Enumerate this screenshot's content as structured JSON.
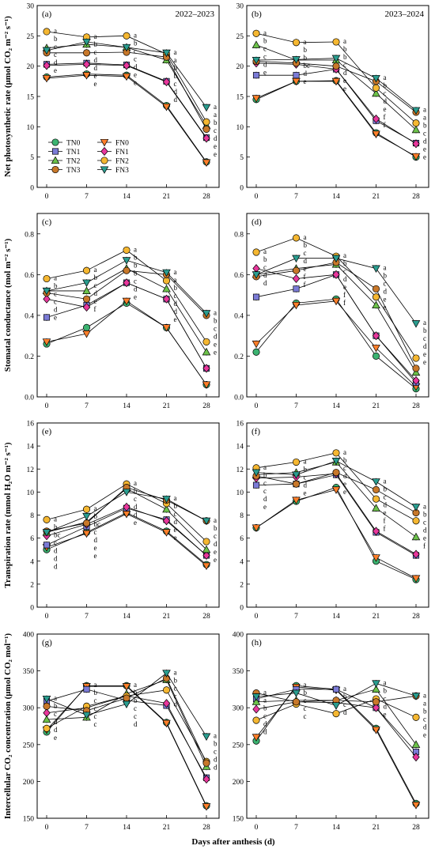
{
  "figure": {
    "xlabel": "Days after anthesis (d)",
    "row_labels": [
      "Net photosynthetic rate (μmol CO₂ m⁻² s⁻¹)",
      "Stomatal conductance (mol m⁻² s⁻¹)",
      "Transpiration rate (mmol H₂O m⁻² s⁻¹)",
      "Intercellular CO₂ concentration (μmol CO₂ mol⁻¹)"
    ]
  },
  "legend": [
    {
      "name": "TN0",
      "color": "#3cb371",
      "marker": "circle"
    },
    {
      "name": "FN0",
      "color": "#ff7f2a",
      "marker": "triangle-down"
    },
    {
      "name": "TN1",
      "color": "#7b7bd6",
      "marker": "square"
    },
    {
      "name": "FN1",
      "color": "#e8379c",
      "marker": "diamond"
    },
    {
      "name": "TN2",
      "color": "#6cc24a",
      "marker": "triangle-up"
    },
    {
      "name": "FN2",
      "color": "#f5b731",
      "marker": "circle"
    },
    {
      "name": "TN3",
      "color": "#c8782a",
      "marker": "circle"
    },
    {
      "name": "FN3",
      "color": "#2a9d8f",
      "marker": "triangle-down"
    }
  ],
  "chart_data": [
    {
      "id": "a",
      "type": "line",
      "panel_label": "(a)",
      "season": "2022–2023",
      "x": [
        0,
        7,
        14,
        21,
        28
      ],
      "ylim": [
        0,
        30
      ],
      "yticks": [
        0,
        5,
        10,
        15,
        20,
        25,
        30
      ],
      "series": [
        {
          "name": "TN0",
          "values": [
            18.2,
            18.7,
            18.5,
            13.5,
            4.2
          ]
        },
        {
          "name": "FN0",
          "values": [
            18.0,
            18.5,
            18.3,
            13.3,
            4.1
          ]
        },
        {
          "name": "TN1",
          "values": [
            20.3,
            20.5,
            20.2,
            17.5,
            8.2
          ]
        },
        {
          "name": "FN1",
          "values": [
            20.1,
            20.3,
            20.1,
            17.4,
            8.1
          ]
        },
        {
          "name": "TN2",
          "values": [
            23.0,
            23.6,
            23.1,
            21.0,
            10.2
          ]
        },
        {
          "name": "FN2",
          "values": [
            25.7,
            24.8,
            25.0,
            22.0,
            10.8
          ]
        },
        {
          "name": "TN3",
          "values": [
            22.2,
            22.2,
            22.3,
            21.5,
            9.6
          ]
        },
        {
          "name": "FN3",
          "values": [
            22.6,
            24.0,
            23.1,
            22.2,
            13.2
          ]
        }
      ],
      "letters": [
        [
          "a",
          "b",
          "c",
          "c",
          "d",
          "e"
        ],
        [
          "a",
          "b",
          "c",
          "d",
          "d",
          "e",
          "e"
        ],
        [
          "a",
          "b",
          "c",
          "c",
          "d",
          "e",
          "e"
        ],
        [
          "a",
          "a",
          "b",
          "b",
          "c",
          "d",
          "d"
        ],
        [
          "a",
          "a",
          "b",
          "c",
          "d",
          "e",
          "e"
        ]
      ]
    },
    {
      "id": "b",
      "type": "line",
      "panel_label": "(b)",
      "season": "2023–2024",
      "x": [
        0,
        7,
        14,
        21,
        28
      ],
      "ylim": [
        0,
        30
      ],
      "yticks": [
        0,
        5,
        10,
        15,
        20,
        25,
        30
      ],
      "series": [
        {
          "name": "TN0",
          "values": [
            14.5,
            17.5,
            17.6,
            9.0,
            5.0
          ]
        },
        {
          "name": "FN0",
          "values": [
            14.7,
            17.5,
            17.5,
            8.8,
            5.1
          ]
        },
        {
          "name": "TN1",
          "values": [
            18.5,
            18.5,
            19.5,
            11.0,
            7.3
          ]
        },
        {
          "name": "FN1",
          "values": [
            20.5,
            20.3,
            19.5,
            11.3,
            7.2
          ]
        },
        {
          "name": "TN2",
          "values": [
            23.5,
            21.0,
            21.0,
            15.5,
            9.5
          ]
        },
        {
          "name": "FN2",
          "values": [
            25.4,
            23.9,
            24.0,
            16.4,
            10.6
          ]
        },
        {
          "name": "TN3",
          "values": [
            20.8,
            20.5,
            20.0,
            17.5,
            12.4
          ]
        },
        {
          "name": "FN3",
          "values": [
            21.0,
            21.1,
            21.3,
            18.0,
            12.7
          ]
        }
      ],
      "letters": [
        [
          "a",
          "b",
          "c",
          "c",
          "d",
          "e"
        ],
        [
          "a",
          "b",
          "b",
          "bc",
          "d",
          "e"
        ],
        [
          "a",
          "b",
          "b",
          "c",
          "d",
          "e",
          "e"
        ],
        [
          "a",
          "b",
          "c",
          "d",
          "e",
          "f",
          "f"
        ],
        [
          "a",
          "a",
          "b",
          "c",
          "d",
          "e",
          "e"
        ]
      ]
    },
    {
      "id": "c",
      "type": "line",
      "panel_label": "(c)",
      "season": "",
      "x": [
        0,
        7,
        14,
        21,
        28
      ],
      "ylim": [
        0,
        0.9
      ],
      "yticks": [
        0.0,
        0.2,
        0.4,
        0.6,
        0.8
      ],
      "series": [
        {
          "name": "TN0",
          "values": [
            0.26,
            0.34,
            0.46,
            0.34,
            0.06
          ]
        },
        {
          "name": "FN0",
          "values": [
            0.27,
            0.31,
            0.47,
            0.34,
            0.06
          ]
        },
        {
          "name": "TN1",
          "values": [
            0.39,
            0.45,
            0.56,
            0.48,
            0.14
          ]
        },
        {
          "name": "FN1",
          "values": [
            0.48,
            0.44,
            0.56,
            0.48,
            0.14
          ]
        },
        {
          "name": "TN2",
          "values": [
            0.52,
            0.52,
            0.63,
            0.53,
            0.22
          ]
        },
        {
          "name": "FN2",
          "values": [
            0.58,
            0.62,
            0.72,
            0.57,
            0.27
          ]
        },
        {
          "name": "TN3",
          "values": [
            0.51,
            0.48,
            0.62,
            0.6,
            0.4
          ]
        },
        {
          "name": "FN3",
          "values": [
            0.52,
            0.56,
            0.67,
            0.61,
            0.41
          ]
        }
      ],
      "letters": [
        [
          "a",
          "b",
          "c",
          "c",
          "d",
          "e"
        ],
        [
          "a",
          "b",
          "c",
          "d",
          "e",
          "f"
        ],
        [
          "a",
          "b",
          "b",
          "b",
          "c",
          "d",
          "e"
        ],
        [
          "a",
          "a",
          "b",
          "c",
          "d",
          "d",
          "e"
        ],
        [
          "a",
          "b",
          "c",
          "d",
          "e",
          "e"
        ]
      ]
    },
    {
      "id": "d",
      "type": "line",
      "panel_label": "(d)",
      "season": "",
      "x": [
        0,
        7,
        14,
        21,
        28
      ],
      "ylim": [
        0,
        0.9
      ],
      "yticks": [
        0.0,
        0.2,
        0.4,
        0.6,
        0.8
      ],
      "series": [
        {
          "name": "TN0",
          "values": [
            0.22,
            0.46,
            0.48,
            0.2,
            0.04
          ]
        },
        {
          "name": "FN0",
          "values": [
            0.26,
            0.45,
            0.47,
            0.24,
            0.05
          ]
        },
        {
          "name": "TN1",
          "values": [
            0.49,
            0.53,
            0.6,
            0.3,
            0.07
          ]
        },
        {
          "name": "FN1",
          "values": [
            0.63,
            0.58,
            0.6,
            0.3,
            0.08
          ]
        },
        {
          "name": "TN2",
          "values": [
            0.6,
            0.63,
            0.65,
            0.45,
            0.12
          ]
        },
        {
          "name": "FN2",
          "values": [
            0.71,
            0.78,
            0.69,
            0.49,
            0.19
          ]
        },
        {
          "name": "TN3",
          "values": [
            0.59,
            0.62,
            0.66,
            0.53,
            0.14
          ]
        },
        {
          "name": "FN3",
          "values": [
            0.6,
            0.68,
            0.68,
            0.63,
            0.36
          ]
        }
      ],
      "letters": [
        [
          "a",
          "b",
          "c",
          "d",
          "d"
        ],
        [
          "a",
          "b",
          "c",
          "d",
          "e",
          "f",
          "f"
        ],
        [
          "a",
          "b",
          "c",
          "d",
          "e",
          "f",
          "f"
        ],
        [
          "a",
          "b",
          "c",
          "d",
          "e",
          "e"
        ],
        [
          "a",
          "b",
          "c",
          "d",
          "e",
          "e"
        ]
      ]
    },
    {
      "id": "e",
      "type": "line",
      "panel_label": "(e)",
      "season": "",
      "x": [
        0,
        7,
        14,
        21,
        28
      ],
      "ylim": [
        0,
        16
      ],
      "yticks": [
        0,
        2,
        4,
        6,
        8,
        10,
        12,
        14,
        16
      ],
      "series": [
        {
          "name": "TN0",
          "values": [
            5.0,
            6.5,
            8.2,
            6.6,
            3.7
          ]
        },
        {
          "name": "FN0",
          "values": [
            5.2,
            6.4,
            8.1,
            6.5,
            3.6
          ]
        },
        {
          "name": "TN1",
          "values": [
            5.4,
            7.0,
            8.6,
            7.6,
            4.5
          ]
        },
        {
          "name": "FN1",
          "values": [
            6.2,
            7.2,
            8.7,
            7.5,
            4.5
          ]
        },
        {
          "name": "TN2",
          "values": [
            6.5,
            7.4,
            10.3,
            8.5,
            5.0
          ]
        },
        {
          "name": "FN2",
          "values": [
            7.6,
            8.5,
            10.7,
            9.0,
            5.7
          ]
        },
        {
          "name": "TN3",
          "values": [
            6.6,
            7.3,
            10.4,
            9.3,
            7.5
          ]
        },
        {
          "name": "FN3",
          "values": [
            6.5,
            7.9,
            10.0,
            9.4,
            7.5
          ]
        }
      ],
      "letters": [
        [
          "a",
          "b",
          "bc",
          "c",
          "d",
          "d",
          "d"
        ],
        [
          "a",
          "b",
          "bc",
          "c",
          "d",
          "e",
          "e"
        ],
        [
          "a",
          "b",
          "c",
          "d",
          "d",
          "e"
        ],
        [
          "a",
          "b",
          "c",
          "d",
          "e",
          "e"
        ],
        [
          "a",
          "b",
          "c",
          "d",
          "e",
          "e"
        ]
      ]
    },
    {
      "id": "f",
      "type": "line",
      "panel_label": "(f)",
      "season": "",
      "x": [
        0,
        7,
        14,
        21,
        28
      ],
      "ylim": [
        0,
        16
      ],
      "yticks": [
        0,
        2,
        4,
        6,
        8,
        10,
        12,
        14,
        16
      ],
      "series": [
        {
          "name": "TN0",
          "values": [
            6.9,
            9.2,
            10.4,
            4.0,
            2.4
          ]
        },
        {
          "name": "FN0",
          "values": [
            6.9,
            9.3,
            10.2,
            4.3,
            2.5
          ]
        },
        {
          "name": "TN1",
          "values": [
            10.6,
            10.7,
            11.5,
            6.5,
            4.5
          ]
        },
        {
          "name": "FN1",
          "values": [
            11.2,
            11.3,
            11.6,
            6.6,
            4.6
          ]
        },
        {
          "name": "TN2",
          "values": [
            11.5,
            11.7,
            12.6,
            8.6,
            6.1
          ]
        },
        {
          "name": "FN2",
          "values": [
            12.1,
            12.6,
            13.4,
            9.4,
            7.5
          ]
        },
        {
          "name": "TN3",
          "values": [
            11.4,
            10.7,
            11.7,
            10.2,
            8.2
          ]
        },
        {
          "name": "FN3",
          "values": [
            11.7,
            11.5,
            12.7,
            10.9,
            8.7
          ]
        }
      ],
      "letters": [
        [
          "a",
          "b",
          "c",
          "c",
          "d",
          "e"
        ],
        [
          "a",
          "b",
          "c",
          "d",
          "e"
        ],
        [
          "a",
          "b",
          "c",
          "d",
          "e",
          "e"
        ],
        [
          "a",
          "b",
          "c",
          "d",
          "e",
          "f",
          "f"
        ],
        [
          "a",
          "b",
          "c",
          "d",
          "e",
          "f"
        ]
      ]
    },
    {
      "id": "g",
      "type": "line",
      "panel_label": "(g)",
      "season": "",
      "x": [
        0,
        7,
        14,
        21,
        28
      ],
      "ylim": [
        150,
        400
      ],
      "yticks": [
        150,
        200,
        250,
        300,
        350,
        400
      ],
      "series": [
        {
          "name": "TN0",
          "values": [
            267,
            330,
            330,
            280,
            167
          ]
        },
        {
          "name": "FN0",
          "values": [
            270,
            329,
            329,
            279,
            166
          ]
        },
        {
          "name": "TN1",
          "values": [
            309,
            325,
            310,
            303,
            205
          ]
        },
        {
          "name": "FN1",
          "values": [
            293,
            300,
            316,
            306,
            203
          ]
        },
        {
          "name": "TN2",
          "values": [
            284,
            287,
            319,
            338,
            220
          ]
        },
        {
          "name": "FN2",
          "values": [
            272,
            302,
            316,
            324,
            227
          ]
        },
        {
          "name": "TN3",
          "values": [
            302,
            296,
            313,
            340,
            225
          ]
        },
        {
          "name": "FN3",
          "values": [
            312,
            290,
            305,
            347,
            261
          ]
        }
      ],
      "letters": [
        [
          "a",
          "b",
          "c",
          "d",
          "d",
          "e"
        ],
        [
          "a",
          "b",
          "c",
          "c",
          "c",
          "c"
        ],
        [
          "a",
          "b",
          "b",
          "c",
          "c",
          "d"
        ],
        [
          "a",
          "b",
          "c",
          "c",
          "d"
        ],
        [
          "a",
          "b",
          "c",
          "d",
          "d"
        ]
      ]
    },
    {
      "id": "h",
      "type": "line",
      "panel_label": "(h)",
      "season": "",
      "x": [
        0,
        7,
        14,
        21,
        28
      ],
      "ylim": [
        150,
        400
      ],
      "yticks": [
        150,
        200,
        250,
        300,
        350,
        400
      ],
      "series": [
        {
          "name": "TN0",
          "values": [
            255,
            330,
            325,
            272,
            170
          ]
        },
        {
          "name": "FN0",
          "values": [
            260,
            328,
            324,
            270,
            168
          ]
        },
        {
          "name": "TN1",
          "values": [
            312,
            325,
            325,
            300,
            240
          ]
        },
        {
          "name": "FN1",
          "values": [
            298,
            308,
            307,
            300,
            233
          ]
        },
        {
          "name": "TN2",
          "values": [
            308,
            310,
            310,
            325,
            250
          ]
        },
        {
          "name": "FN2",
          "values": [
            283,
            305,
            292,
            312,
            287
          ]
        },
        {
          "name": "TN3",
          "values": [
            320,
            308,
            310,
            308,
            316
          ]
        },
        {
          "name": "FN3",
          "values": [
            315,
            320,
            303,
            333,
            316
          ]
        }
      ],
      "letters": [
        [
          "a",
          "a",
          "b",
          "c",
          "d",
          "d"
        ],
        [
          "a",
          "b",
          "c",
          "c",
          "c"
        ],
        [
          "a",
          "b",
          "c",
          "d"
        ],
        [
          "a",
          "b",
          "c",
          "d",
          "e"
        ],
        [
          "a",
          "a",
          "b",
          "c",
          "d",
          "e"
        ]
      ]
    }
  ]
}
